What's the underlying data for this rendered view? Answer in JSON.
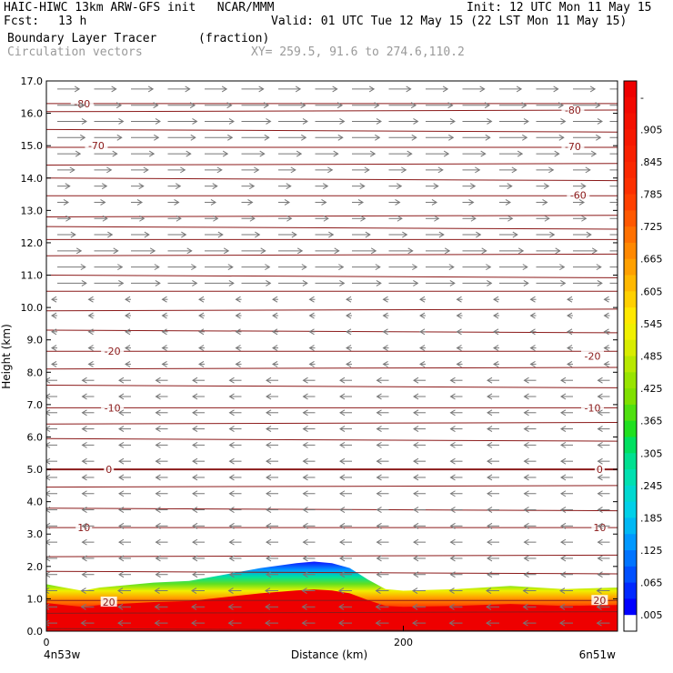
{
  "header": {
    "title": "HAIC-HIWC 13km ARW-GFS init   NCAR/MMM",
    "init": "Init: 12 UTC Mon 11 May 15",
    "fcst_label": "Fcst:",
    "fcst_value": "13 h",
    "valid": "Valid: 01 UTC Tue 12 May 15 (22 LST Mon 11 May 15)",
    "field1": "Boundary Layer Tracer",
    "field1_units": "(fraction)",
    "field2": "Circulation vectors",
    "xy_range": "XY= 259.5, 91.6 to 274.6,110.2"
  },
  "chart_data": {
    "type": "heatmap",
    "xlabel": "Distance (km)",
    "ylabel": "Height (km)",
    "xlim": [
      0,
      320
    ],
    "ylim": [
      0,
      17
    ],
    "x_ticks": [
      0,
      200
    ],
    "x_tick_labels": [
      "0",
      "200"
    ],
    "x_end_labels": [
      "4n53w",
      "6n51w"
    ],
    "y_ticks": [
      0.0,
      1.0,
      2.0,
      3.0,
      4.0,
      5.0,
      6.0,
      7.0,
      8.0,
      9.0,
      10.0,
      11.0,
      12.0,
      13.0,
      14.0,
      15.0,
      16.0,
      17.0
    ],
    "y_tick_labels": [
      "0.0",
      "1.0",
      "2.0",
      "3.0",
      "4.0",
      "5.0",
      "6.0",
      "7.0",
      "8.0",
      "9.0",
      "10.0",
      "11.0",
      "12.0",
      "13.0",
      "14.0",
      "15.0",
      "16.0",
      "17.0"
    ],
    "colorbar": {
      "labels": [
        "-",
        ".905",
        ".845",
        ".785",
        ".725",
        ".665",
        ".605",
        ".545",
        ".485",
        ".425",
        ".365",
        ".305",
        ".245",
        ".185",
        ".125",
        ".065",
        ".005"
      ],
      "colors": [
        "#ffffff",
        "#0000ff",
        "#0050ff",
        "#0098ff",
        "#00d0e8",
        "#00e0b0",
        "#00e060",
        "#20e020",
        "#80e000",
        "#b8e800",
        "#f0f000",
        "#ffd000",
        "#ffa000",
        "#ff7000",
        "#ff4000",
        "#ff1800",
        "#ee0000"
      ]
    },
    "tracer_top_km": [
      [
        0,
        1.45
      ],
      [
        10,
        1.35
      ],
      [
        20,
        1.25
      ],
      [
        30,
        1.35
      ],
      [
        40,
        1.4
      ],
      [
        60,
        1.5
      ],
      [
        80,
        1.55
      ],
      [
        100,
        1.75
      ],
      [
        120,
        1.95
      ],
      [
        140,
        2.1
      ],
      [
        150,
        2.15
      ],
      [
        160,
        2.1
      ],
      [
        170,
        1.95
      ],
      [
        180,
        1.6
      ],
      [
        190,
        1.3
      ],
      [
        200,
        1.25
      ],
      [
        230,
        1.3
      ],
      [
        260,
        1.4
      ],
      [
        290,
        1.3
      ],
      [
        320,
        1.35
      ]
    ],
    "temperature_contours": {
      "color": "#8b1a1a",
      "labels": [
        {
          "text": "-80",
          "x": 20,
          "y": 16.3
        },
        {
          "text": "-80",
          "x": 295,
          "y": 16.1
        },
        {
          "text": "-70",
          "x": 28,
          "y": 15.0
        },
        {
          "text": "-70",
          "x": 295,
          "y": 14.97
        },
        {
          "text": "-60",
          "x": 298,
          "y": 13.47
        },
        {
          "text": "-20",
          "x": 37,
          "y": 8.65
        },
        {
          "text": "-20",
          "x": 306,
          "y": 8.5
        },
        {
          "text": "-10",
          "x": 37,
          "y": 6.9
        },
        {
          "text": "-10",
          "x": 306,
          "y": 6.9
        },
        {
          "text": "0",
          "x": 35,
          "y": 5.0
        },
        {
          "text": "0",
          "x": 310,
          "y": 5.0
        },
        {
          "text": "10",
          "x": 21,
          "y": 3.2
        },
        {
          "text": "10",
          "x": 310,
          "y": 3.2
        },
        {
          "text": "20",
          "x": 35,
          "y": 0.9
        },
        {
          "text": "20",
          "x": 310,
          "y": 0.95
        }
      ]
    }
  }
}
